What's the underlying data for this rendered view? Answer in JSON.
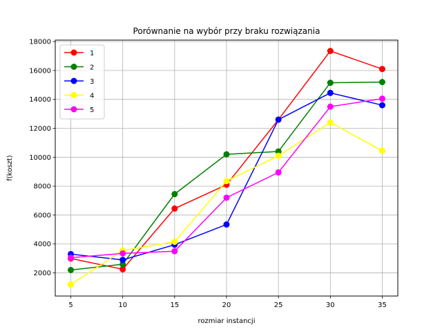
{
  "chart_data": {
    "type": "line",
    "title": "Porównanie na wybór przy braku rozwiązania",
    "xlabel": "rozmiar instancji",
    "ylabel": "f(koszt)",
    "x": [
      5,
      10,
      15,
      20,
      25,
      30,
      35
    ],
    "xticks": [
      5,
      10,
      15,
      20,
      25,
      30,
      35
    ],
    "yticks": [
      2000,
      4000,
      6000,
      8000,
      10000,
      12000,
      14000,
      16000,
      18000
    ],
    "xlim": [
      3.5,
      36.5
    ],
    "ylim": [
      400,
      18100
    ],
    "grid": true,
    "legend_position": "top-left",
    "series": [
      {
        "name": "1",
        "color": "#ff0000",
        "values": [
          3000,
          2250,
          6450,
          8100,
          12600,
          17350,
          16100
        ]
      },
      {
        "name": "2",
        "color": "#008000",
        "values": [
          2200,
          2600,
          7450,
          10200,
          10400,
          15150,
          15200
        ]
      },
      {
        "name": "3",
        "color": "#0000ff",
        "values": [
          3300,
          2900,
          3950,
          5350,
          12600,
          14450,
          13600
        ]
      },
      {
        "name": "4",
        "color": "#ffff00",
        "values": [
          1200,
          3550,
          4150,
          8350,
          10100,
          12400,
          10450
        ]
      },
      {
        "name": "5",
        "color": "#ff00ff",
        "values": [
          3050,
          3350,
          3500,
          7200,
          8950,
          13500,
          14050
        ]
      }
    ]
  }
}
